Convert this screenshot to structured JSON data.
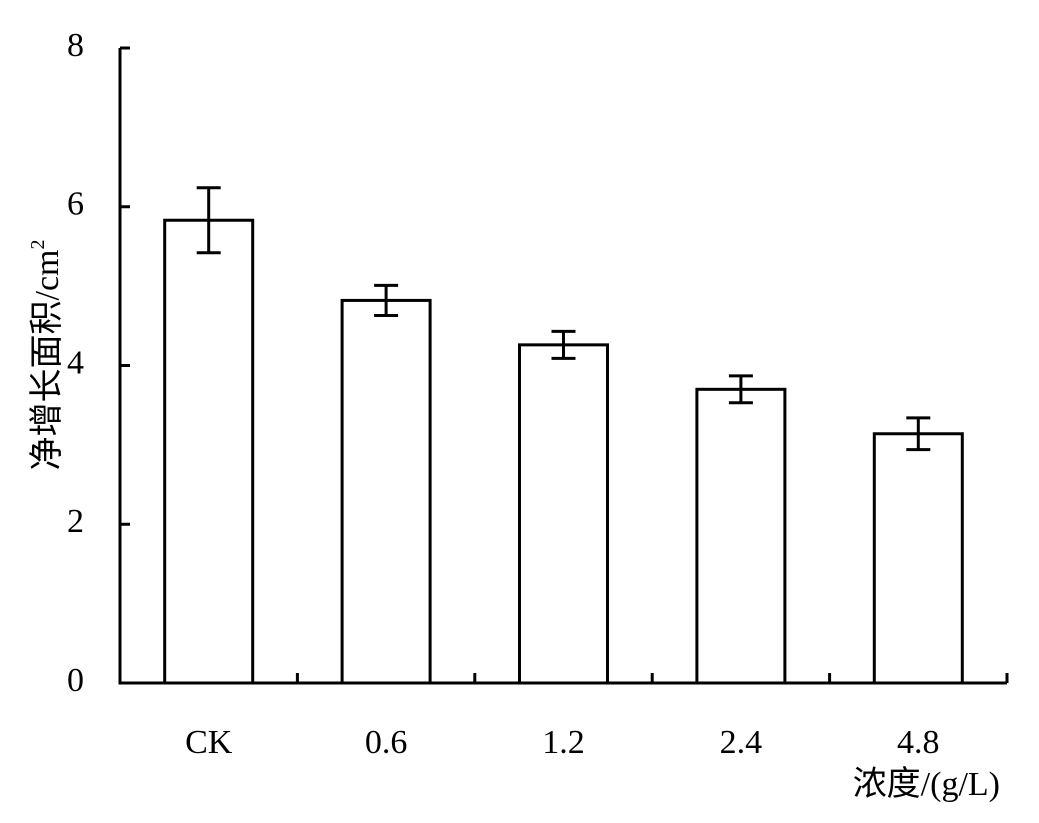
{
  "chart_data": {
    "type": "bar",
    "categories": [
      "CK",
      "0.6",
      "1.2",
      "2.4",
      "4.8"
    ],
    "values": [
      5.83,
      4.82,
      4.26,
      3.7,
      3.14
    ],
    "errors": [
      0.41,
      0.19,
      0.17,
      0.17,
      0.2
    ],
    "xlabel": "浓度/(g/L)",
    "ylabel_main": "净增长面积/cm",
    "ylabel_sup": "2",
    "ylim": [
      0,
      8
    ],
    "yticks": [
      0,
      2,
      4,
      6,
      8
    ],
    "grid": false,
    "legend": "none",
    "bar_fill": "#ffffff",
    "bar_stroke": "#000000"
  }
}
